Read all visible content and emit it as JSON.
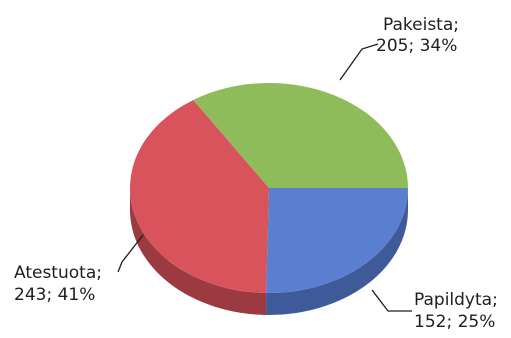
{
  "chart_data": {
    "type": "pie",
    "three_d": true,
    "title": "",
    "slices": [
      {
        "label": "Papildyta",
        "value": 152,
        "percent": "25%",
        "color": "#5b7fd0",
        "side_color": "#3f5a98"
      },
      {
        "label": "Atestuota",
        "value": 243,
        "percent": "41%",
        "color": "#d9535c",
        "side_color": "#9c3a41"
      },
      {
        "label": "Pakeista",
        "value": 205,
        "percent": "34%",
        "color": "#8fbc5a",
        "side_color": "#5f7f3b"
      }
    ],
    "labels": {
      "papildyta": {
        "line1": "Papildyta;",
        "line2": "152; 25%"
      },
      "atestuota": {
        "line1": "Atestuota;",
        "line2": "243; 41%"
      },
      "pakeista": {
        "line1": "Pakeista;",
        "line2": "205; 34%"
      }
    }
  }
}
